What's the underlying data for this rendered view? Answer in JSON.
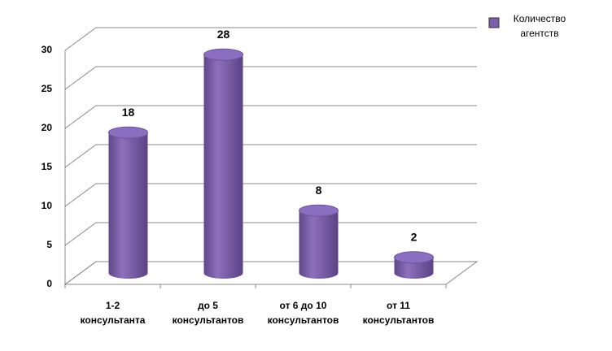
{
  "chart_data": {
    "type": "bar",
    "categories": [
      "1-2\nконсультанта",
      "до 5\nконсультантов",
      "от 6 до 10\nконсультантов",
      "от 11\nконсультантов"
    ],
    "series": [
      {
        "name": "Количество агентств",
        "color": "#7b5fa8",
        "values": [
          18,
          28,
          8,
          2
        ]
      }
    ],
    "ylim": [
      0,
      30
    ],
    "yticks": [
      0,
      5,
      10,
      15,
      20,
      25,
      30
    ],
    "grid": true,
    "legend": "right"
  }
}
